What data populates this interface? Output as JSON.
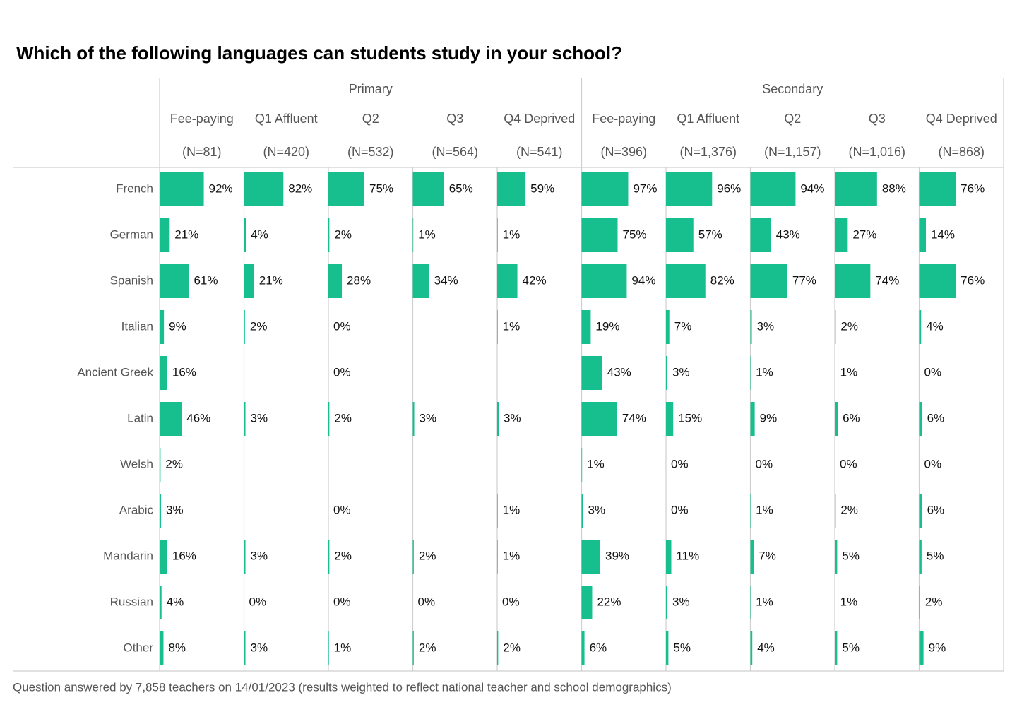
{
  "chart_data": {
    "type": "bar",
    "orientation": "horizontal",
    "title": "Which of the following languages can students study in your school?",
    "footnote": "Question answered by 7,858 teachers on 14/01/2023 (results weighted to reflect national teacher and school demographics)",
    "categories": [
      "French",
      "German",
      "Spanish",
      "Italian",
      "Ancient Greek",
      "Latin",
      "Welsh",
      "Arabic",
      "Mandarin",
      "Russian",
      "Other"
    ],
    "xlim": [
      0,
      100
    ],
    "color": "#17bf8e",
    "groups": [
      {
        "name": "Primary",
        "series": [
          {
            "name": "Fee-paying",
            "n_label": "(N=81)",
            "values": [
              92,
              21,
              61,
              9,
              16,
              46,
              2,
              3,
              16,
              4,
              8
            ],
            "value_labels": [
              "92%",
              "21%",
              "61%",
              "9%",
              "16%",
              "46%",
              "2%",
              "3%",
              "16%",
              "4%",
              "8%"
            ]
          },
          {
            "name": "Q1 Affluent",
            "n_label": "(N=420)",
            "values": [
              82,
              4,
              21,
              2,
              null,
              3,
              null,
              null,
              3,
              0,
              3
            ],
            "value_labels": [
              "82%",
              "4%",
              "21%",
              "2%",
              null,
              "3%",
              null,
              null,
              "3%",
              "0%",
              "3%"
            ]
          },
          {
            "name": "Q2",
            "n_label": "(N=532)",
            "values": [
              75,
              2,
              28,
              0,
              0,
              2,
              null,
              0,
              2,
              0,
              1
            ],
            "value_labels": [
              "75%",
              "2%",
              "28%",
              "0%",
              "0%",
              "2%",
              null,
              "0%",
              "2%",
              "0%",
              "1%"
            ]
          },
          {
            "name": "Q3",
            "n_label": "(N=564)",
            "values": [
              65,
              1,
              34,
              null,
              null,
              3,
              null,
              null,
              2,
              0,
              2
            ],
            "value_labels": [
              "65%",
              "1%",
              "34%",
              null,
              null,
              "3%",
              null,
              null,
              "2%",
              "0%",
              "2%"
            ]
          },
          {
            "name": "Q4 Deprived",
            "n_label": "(N=541)",
            "values": [
              59,
              1,
              42,
              1,
              null,
              3,
              null,
              1,
              1,
              0,
              2
            ],
            "value_labels": [
              "59%",
              "1%",
              "42%",
              "1%",
              null,
              "3%",
              null,
              "1%",
              "1%",
              "0%",
              "2%"
            ]
          }
        ]
      },
      {
        "name": "Secondary",
        "series": [
          {
            "name": "Fee-paying",
            "n_label": "(N=396)",
            "values": [
              97,
              75,
              94,
              19,
              43,
              74,
              1,
              3,
              39,
              22,
              6
            ],
            "value_labels": [
              "97%",
              "75%",
              "94%",
              "19%",
              "43%",
              "74%",
              "1%",
              "3%",
              "39%",
              "22%",
              "6%"
            ]
          },
          {
            "name": "Q1 Affluent",
            "n_label": "(N=1,376)",
            "values": [
              96,
              57,
              82,
              7,
              3,
              15,
              0,
              0,
              11,
              3,
              5
            ],
            "value_labels": [
              "96%",
              "57%",
              "82%",
              "7%",
              "3%",
              "15%",
              "0%",
              "0%",
              "11%",
              "3%",
              "5%"
            ]
          },
          {
            "name": "Q2",
            "n_label": "(N=1,157)",
            "values": [
              94,
              43,
              77,
              3,
              1,
              9,
              0,
              1,
              7,
              1,
              4
            ],
            "value_labels": [
              "94%",
              "43%",
              "77%",
              "3%",
              "1%",
              "9%",
              "0%",
              "1%",
              "7%",
              "1%",
              "4%"
            ]
          },
          {
            "name": "Q3",
            "n_label": "(N=1,016)",
            "values": [
              88,
              27,
              74,
              2,
              1,
              6,
              0,
              2,
              5,
              1,
              5
            ],
            "value_labels": [
              "88%",
              "27%",
              "74%",
              "2%",
              "1%",
              "6%",
              "0%",
              "2%",
              "5%",
              "1%",
              "5%"
            ]
          },
          {
            "name": "Q4 Deprived",
            "n_label": "(N=868)",
            "values": [
              76,
              14,
              76,
              4,
              0,
              6,
              0,
              6,
              5,
              2,
              9
            ],
            "value_labels": [
              "76%",
              "14%",
              "76%",
              "4%",
              "0%",
              "6%",
              "0%",
              "6%",
              "5%",
              "2%",
              "9%"
            ]
          }
        ]
      }
    ]
  }
}
